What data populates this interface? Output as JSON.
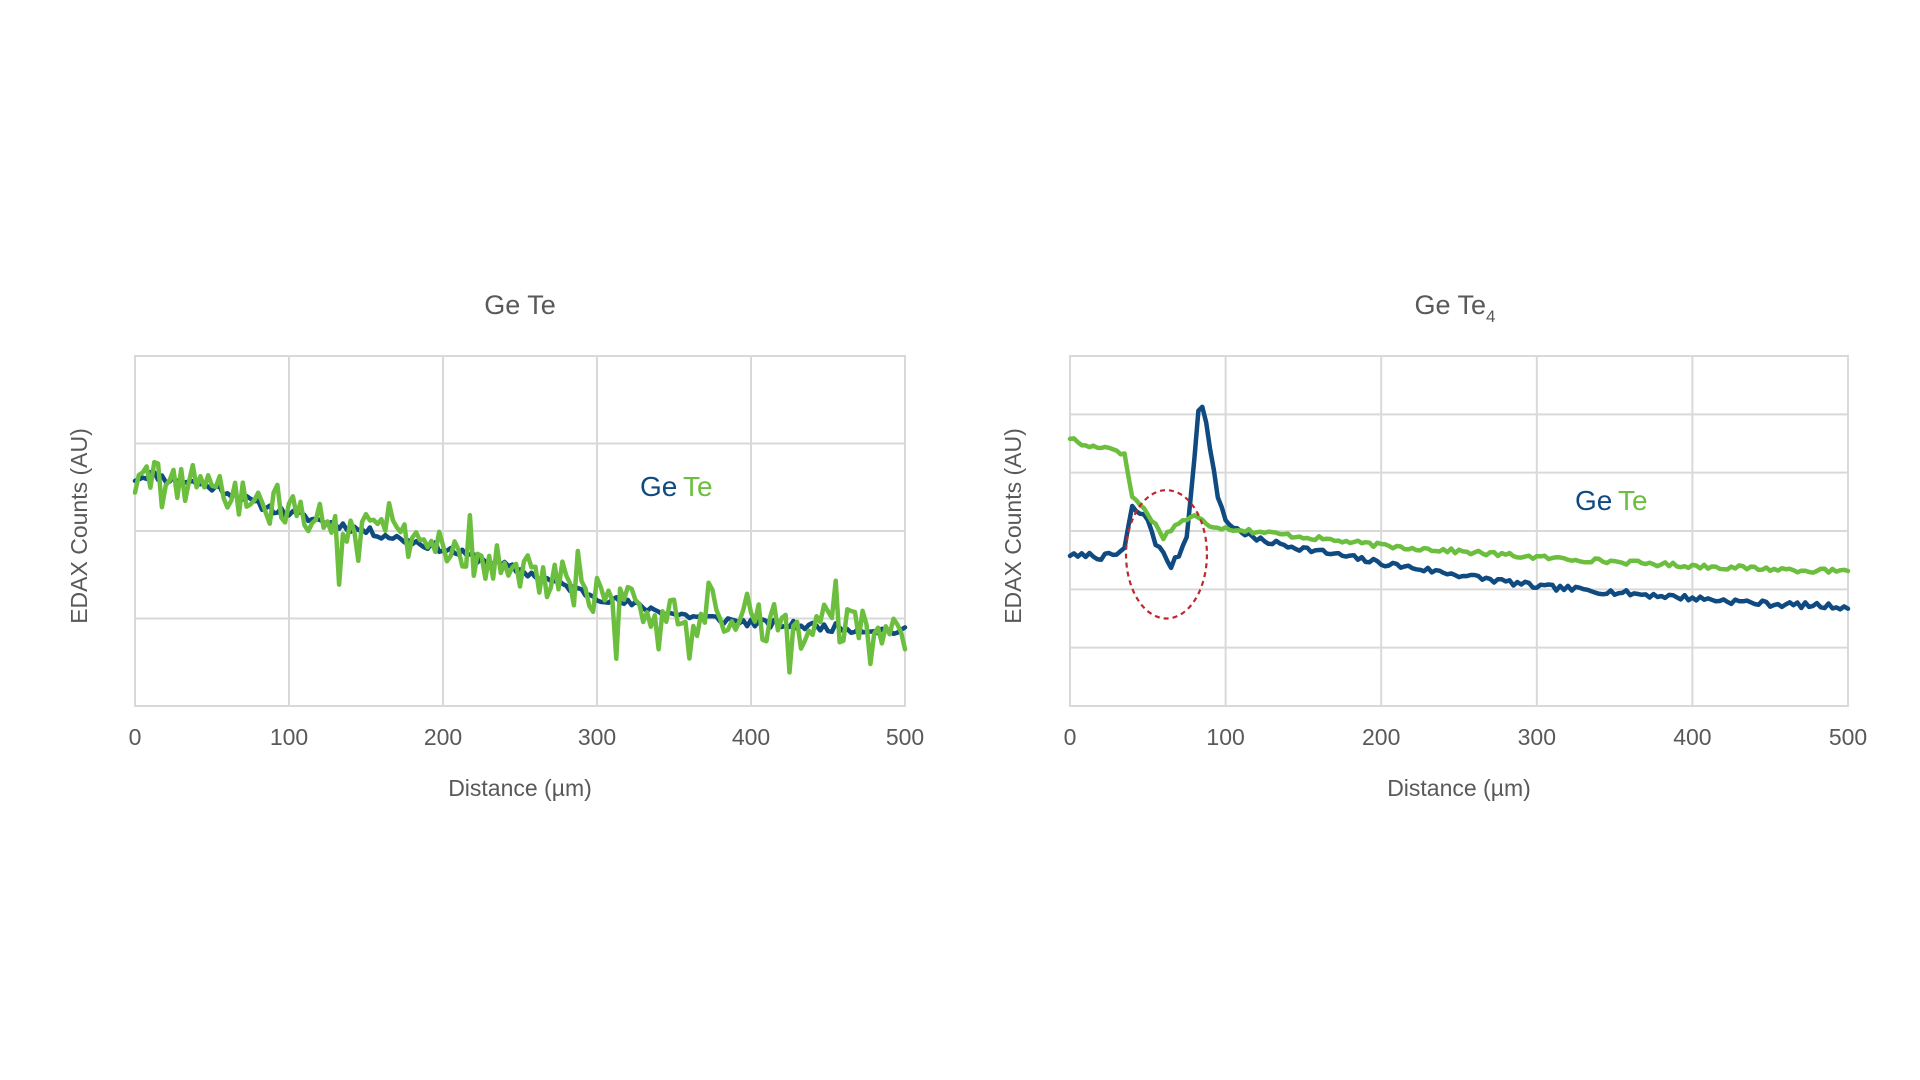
{
  "colors": {
    "ge": "#0f4a80",
    "te": "#6cbf3e",
    "highlight": "#c0272d"
  },
  "chart_data": [
    {
      "type": "line",
      "title": "Ge Te",
      "xlabel": "Distance (µm)",
      "ylabel": "EDAX Counts (AU)",
      "xlim": [
        0,
        500
      ],
      "ylim": [
        0,
        4
      ],
      "x_ticks": [
        0,
        100,
        200,
        300,
        400,
        500
      ],
      "x_tick_labels": [
        "0",
        "100",
        "200",
        "300",
        "400",
        "500"
      ],
      "y_grid": [
        1,
        2,
        3,
        4
      ],
      "legend": [
        {
          "text": "Ge",
          "color": "#0f4a80"
        },
        {
          "text": "Te",
          "color": "#6cbf3e"
        }
      ],
      "series": [
        {
          "name": "Ge",
          "color": "#0f4a80",
          "noise": 0.05,
          "seed": 11,
          "x": [
            0,
            10,
            20,
            40,
            60,
            80,
            100,
            150,
            200,
            250,
            300,
            350,
            400,
            450,
            500
          ],
          "values": [
            2.6,
            2.65,
            2.6,
            2.55,
            2.45,
            2.3,
            2.2,
            2.0,
            1.8,
            1.55,
            1.25,
            1.05,
            0.95,
            0.9,
            0.85
          ]
        },
        {
          "name": "Te",
          "color": "#6cbf3e",
          "noise": 0.22,
          "seed": 29,
          "x": [
            0,
            10,
            20,
            40,
            60,
            80,
            100,
            150,
            200,
            250,
            300,
            350,
            400,
            450,
            500
          ],
          "values": [
            2.55,
            2.6,
            2.55,
            2.55,
            2.4,
            2.3,
            2.2,
            2.0,
            1.8,
            1.55,
            1.25,
            1.05,
            0.95,
            0.95,
            0.85
          ]
        }
      ]
    },
    {
      "type": "line",
      "title": "Ge Te",
      "title_subscript": "4",
      "xlabel": "Distance (µm)",
      "ylabel": "EDAX Counts (AU)",
      "xlim": [
        0,
        500
      ],
      "ylim": [
        0,
        6
      ],
      "x_ticks": [
        0,
        100,
        200,
        300,
        400,
        500
      ],
      "x_tick_labels": [
        "0",
        "100",
        "200",
        "300",
        "400",
        "500"
      ],
      "y_grid": [
        1,
        2,
        3,
        4,
        5
      ],
      "legend": [
        {
          "text": "Ge",
          "color": "#0f4a80"
        },
        {
          "text": "Te",
          "color": "#6cbf3e"
        }
      ],
      "highlight_region": {
        "x_center": 62,
        "y_center": 2.6,
        "x_radius": 26,
        "y_radius": 1.1
      },
      "series": [
        {
          "name": "Ge",
          "color": "#0f4a80",
          "noise": 0.05,
          "seed": 7,
          "x": [
            0,
            5,
            10,
            20,
            30,
            35,
            40,
            45,
            50,
            55,
            60,
            65,
            70,
            75,
            80,
            83,
            87,
            90,
            95,
            100,
            105,
            110,
            120,
            130,
            150,
            200,
            250,
            300,
            350,
            400,
            450,
            500
          ],
          "values": [
            2.6,
            2.55,
            2.6,
            2.55,
            2.6,
            2.7,
            3.4,
            3.3,
            3.2,
            2.8,
            2.6,
            2.4,
            2.6,
            2.9,
            4.3,
            5.2,
            5.0,
            4.4,
            3.6,
            3.2,
            3.05,
            3.0,
            2.85,
            2.8,
            2.7,
            2.45,
            2.25,
            2.05,
            1.95,
            1.85,
            1.75,
            1.7
          ]
        },
        {
          "name": "Te",
          "color": "#6cbf3e",
          "noise": 0.04,
          "seed": 17,
          "x": [
            0,
            10,
            20,
            30,
            35,
            40,
            50,
            60,
            70,
            80,
            90,
            100,
            150,
            200,
            300,
            400,
            500
          ],
          "values": [
            4.6,
            4.45,
            4.45,
            4.4,
            4.3,
            3.6,
            3.3,
            2.9,
            3.15,
            3.25,
            3.1,
            3.05,
            2.9,
            2.75,
            2.55,
            2.4,
            2.3
          ]
        }
      ]
    }
  ]
}
